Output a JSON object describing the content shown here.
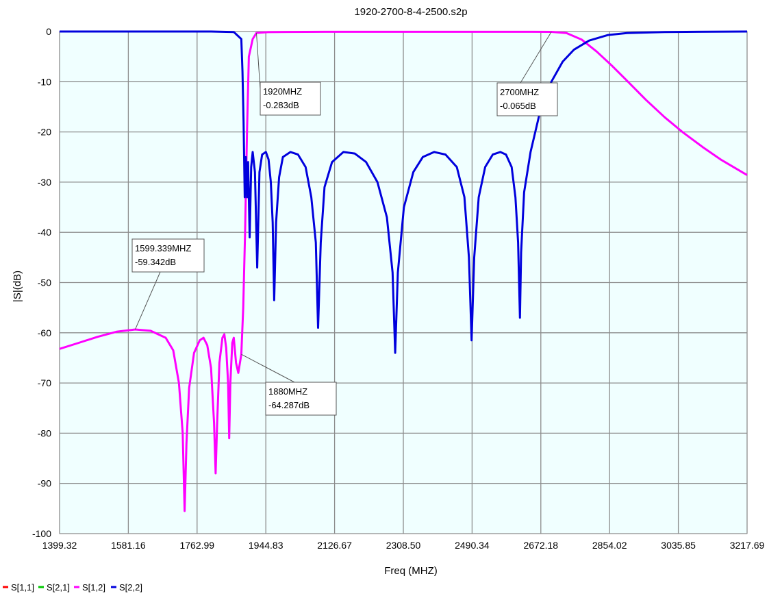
{
  "chart_data": {
    "type": "line",
    "title": "1920-2700-8-4-2500.s2p",
    "xlabel": "Freq (MHZ)",
    "ylabel": "|S|(dB)",
    "xlim": [
      1399.32,
      3217.69
    ],
    "ylim": [
      -100,
      0
    ],
    "x_ticks": [
      "1399.32",
      "1581.16",
      "1762.99",
      "1944.83",
      "2126.67",
      "2308.50",
      "2490.34",
      "2672.18",
      "2854.02",
      "3035.85",
      "3217.69"
    ],
    "y_ticks": [
      "0",
      "-10",
      "-20",
      "-30",
      "-40",
      "-50",
      "-60",
      "-70",
      "-80",
      "-90",
      "-100"
    ],
    "grid": true,
    "legend_position": "bottom-left",
    "series": [
      {
        "name": "S[1,1]",
        "color": "#ff0000",
        "points": []
      },
      {
        "name": "S[2,1]",
        "color": "#00c800",
        "points": []
      },
      {
        "name": "S[1,2]",
        "color": "#ff00ff",
        "points": [
          [
            1399.32,
            -63.2
          ],
          [
            1450,
            -62.0
          ],
          [
            1500,
            -60.8
          ],
          [
            1550,
            -59.8
          ],
          [
            1599.34,
            -59.34
          ],
          [
            1640,
            -59.6
          ],
          [
            1680,
            -61.0
          ],
          [
            1700,
            -63.5
          ],
          [
            1715,
            -70
          ],
          [
            1725,
            -80
          ],
          [
            1730,
            -95.5
          ],
          [
            1735,
            -82
          ],
          [
            1742,
            -71
          ],
          [
            1755,
            -64
          ],
          [
            1770,
            -61.5
          ],
          [
            1780,
            -61
          ],
          [
            1790,
            -62.5
          ],
          [
            1800,
            -67
          ],
          [
            1808,
            -78
          ],
          [
            1812,
            -88
          ],
          [
            1816,
            -78
          ],
          [
            1822,
            -66
          ],
          [
            1830,
            -61
          ],
          [
            1835,
            -60.3
          ],
          [
            1840,
            -63
          ],
          [
            1845,
            -70
          ],
          [
            1848,
            -81
          ],
          [
            1851,
            -70
          ],
          [
            1856,
            -62
          ],
          [
            1860,
            -61
          ],
          [
            1866,
            -66
          ],
          [
            1872,
            -68
          ],
          [
            1880,
            -64.29
          ],
          [
            1885,
            -55
          ],
          [
            1890,
            -40
          ],
          [
            1895,
            -20
          ],
          [
            1900,
            -5
          ],
          [
            1910,
            -1.5
          ],
          [
            1920,
            -0.283
          ],
          [
            1950,
            -0.12
          ],
          [
            2000,
            -0.08
          ],
          [
            2100,
            -0.05
          ],
          [
            2300,
            -0.05
          ],
          [
            2500,
            -0.05
          ],
          [
            2650,
            -0.06
          ],
          [
            2700,
            -0.065
          ],
          [
            2740,
            -0.3
          ],
          [
            2780,
            -1.6
          ],
          [
            2820,
            -4.0
          ],
          [
            2860,
            -6.8
          ],
          [
            2900,
            -9.8
          ],
          [
            2950,
            -13.6
          ],
          [
            3000,
            -17.1
          ],
          [
            3050,
            -20.2
          ],
          [
            3100,
            -23.0
          ],
          [
            3150,
            -25.6
          ],
          [
            3217.69,
            -28.6
          ]
        ]
      },
      {
        "name": "S[2,2]",
        "color": "#0000dd",
        "points": [
          [
            1399.32,
            0
          ],
          [
            1800,
            0
          ],
          [
            1860,
            -0.1
          ],
          [
            1880,
            -1.5
          ],
          [
            1883,
            -8
          ],
          [
            1886,
            -18
          ],
          [
            1889,
            -33
          ],
          [
            1892,
            -25
          ],
          [
            1895,
            -33
          ],
          [
            1898,
            -26
          ],
          [
            1902,
            -41
          ],
          [
            1906,
            -27
          ],
          [
            1910,
            -24
          ],
          [
            1916,
            -28
          ],
          [
            1922,
            -47
          ],
          [
            1928,
            -28
          ],
          [
            1935,
            -24.5
          ],
          [
            1945,
            -24
          ],
          [
            1952,
            -25.5
          ],
          [
            1958,
            -30
          ],
          [
            1963,
            -38
          ],
          [
            1967,
            -53.5
          ],
          [
            1972,
            -38
          ],
          [
            1980,
            -29
          ],
          [
            1990,
            -25
          ],
          [
            2010,
            -24
          ],
          [
            2030,
            -24.5
          ],
          [
            2050,
            -27
          ],
          [
            2065,
            -33
          ],
          [
            2077,
            -42
          ],
          [
            2083,
            -59
          ],
          [
            2090,
            -42
          ],
          [
            2100,
            -31
          ],
          [
            2120,
            -26
          ],
          [
            2150,
            -24
          ],
          [
            2180,
            -24.3
          ],
          [
            2210,
            -26
          ],
          [
            2240,
            -30
          ],
          [
            2265,
            -37
          ],
          [
            2280,
            -48
          ],
          [
            2287,
            -64
          ],
          [
            2294,
            -48
          ],
          [
            2310,
            -35
          ],
          [
            2335,
            -28
          ],
          [
            2360,
            -25
          ],
          [
            2390,
            -24
          ],
          [
            2420,
            -24.5
          ],
          [
            2450,
            -27
          ],
          [
            2470,
            -33
          ],
          [
            2482,
            -45
          ],
          [
            2489,
            -61.5
          ],
          [
            2496,
            -45
          ],
          [
            2508,
            -33
          ],
          [
            2525,
            -27
          ],
          [
            2545,
            -24.5
          ],
          [
            2565,
            -24
          ],
          [
            2580,
            -24.5
          ],
          [
            2595,
            -27
          ],
          [
            2605,
            -33
          ],
          [
            2612,
            -42
          ],
          [
            2617,
            -57
          ],
          [
            2620,
            -44
          ],
          [
            2628,
            -32
          ],
          [
            2645,
            -24
          ],
          [
            2670,
            -16
          ],
          [
            2700,
            -10
          ],
          [
            2730,
            -6
          ],
          [
            2760,
            -3.6
          ],
          [
            2800,
            -1.8
          ],
          [
            2850,
            -0.7
          ],
          [
            2900,
            -0.3
          ],
          [
            3000,
            -0.1
          ],
          [
            3217.69,
            0
          ]
        ]
      }
    ],
    "annotations": [
      {
        "x": 1920,
        "y": -0.283,
        "lines": [
          "1920MHZ",
          "-0.283dB"
        ]
      },
      {
        "x": 2700,
        "y": -0.065,
        "lines": [
          "2700MHZ",
          "-0.065dB"
        ]
      },
      {
        "x": 1599.339,
        "y": -59.342,
        "lines": [
          "1599.339MHZ",
          "-59.342dB"
        ]
      },
      {
        "x": 1880,
        "y": -64.287,
        "lines": [
          "1880MHZ",
          "-64.287dB"
        ]
      }
    ]
  }
}
